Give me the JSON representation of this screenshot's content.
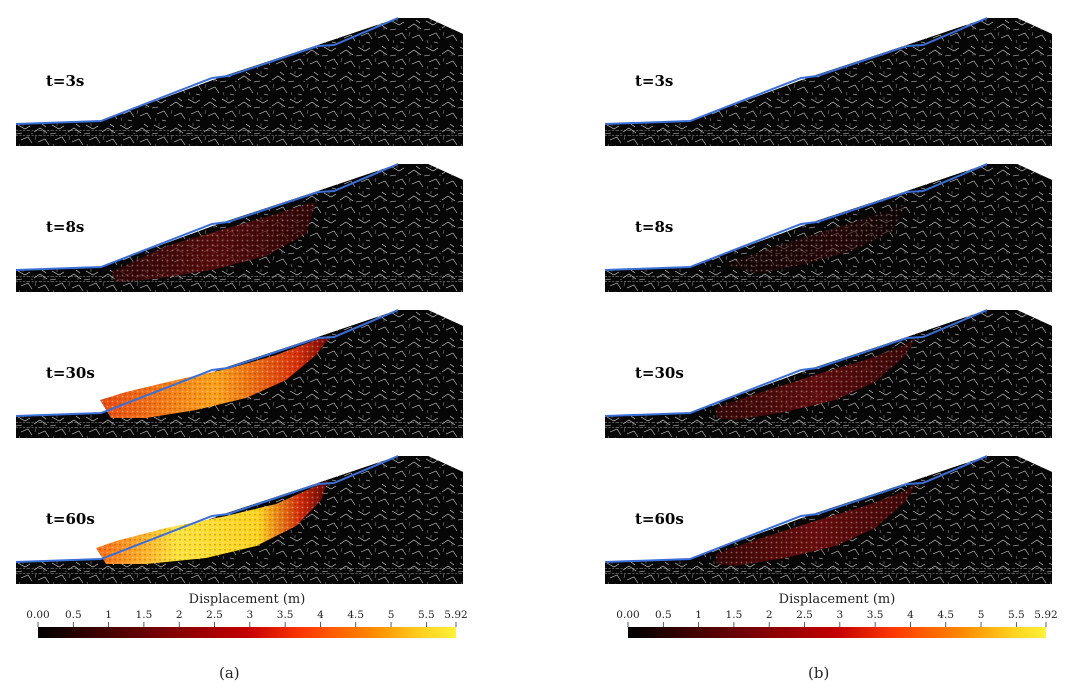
{
  "panels": [
    {
      "id": "a",
      "label": "(a)",
      "frames": [
        {
          "time": "t=3s"
        },
        {
          "time": "t=8s"
        },
        {
          "time": "t=30s"
        },
        {
          "time": "t=60s"
        }
      ]
    },
    {
      "id": "b",
      "label": "(b)",
      "frames": [
        {
          "time": "t=3s"
        },
        {
          "time": "t=8s"
        },
        {
          "time": "t=30s"
        },
        {
          "time": "t=60s"
        }
      ]
    }
  ],
  "colorbar": {
    "title": "Displacement (m)",
    "ticks": [
      "0.00",
      "0.5",
      "1",
      "1.5",
      "2",
      "2.5",
      "3",
      "3.5",
      "4",
      "4.5",
      "5",
      "5.5",
      "5.92"
    ],
    "min": 0,
    "max": 5.92,
    "colors": [
      "#000000",
      "#3a0000",
      "#7a0000",
      "#c40000",
      "#ff3b00",
      "#ff8a00",
      "#ffd21f",
      "#fff23a"
    ]
  },
  "colors": {
    "slope_profile": "#3a6fd8",
    "rock_mass": "#060606",
    "fracture_lines": "#e8e8e8"
  }
}
